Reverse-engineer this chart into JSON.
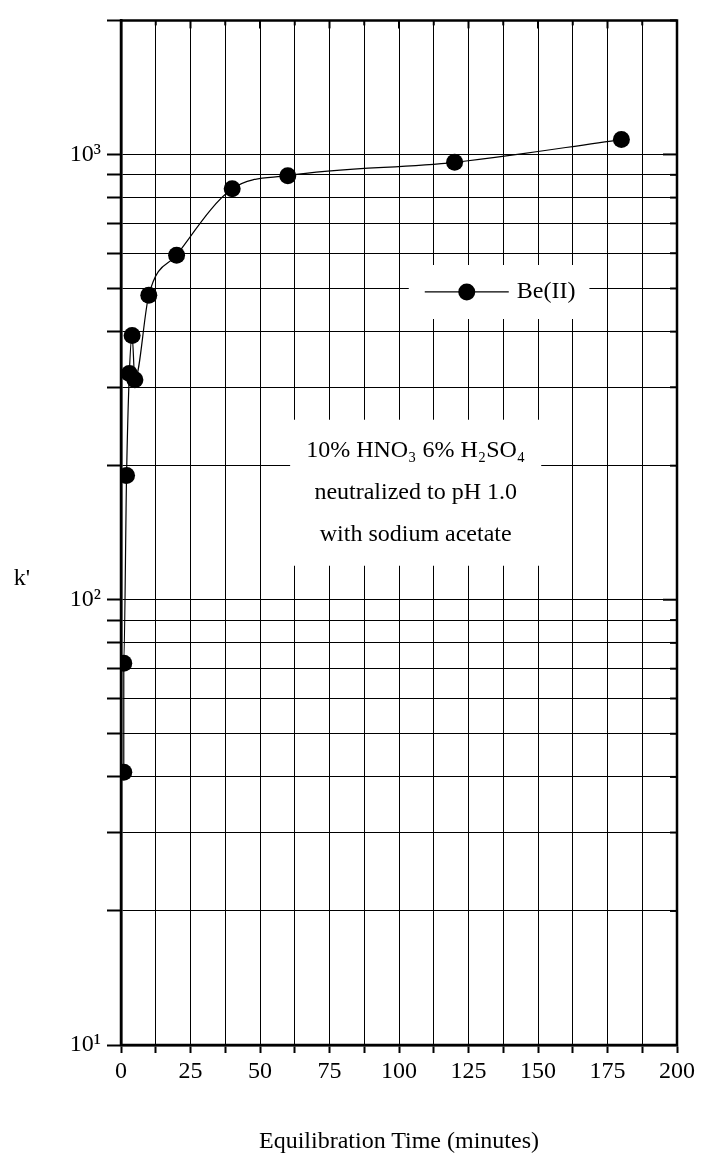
{
  "chart_data": {
    "type": "line",
    "xlabel": "Equilibration Time (minutes)",
    "ylabel": "k'",
    "x": [
      1,
      1,
      2,
      3,
      4,
      5,
      10,
      20,
      40,
      60,
      120,
      180
    ],
    "series": [
      {
        "name": "Be(II)",
        "color": "#000000",
        "values": [
          41,
          72,
          190,
          322,
          392,
          312,
          483,
          594,
          837,
          896,
          960,
          1080
        ]
      }
    ],
    "xlim": [
      0,
      200
    ],
    "xticks": [
      0,
      {
        "value": 12.5,
        "label": null
      },
      25,
      {
        "value": 37.5,
        "label": null
      },
      50,
      {
        "value": 62.5,
        "label": null
      },
      75,
      {
        "value": 87.5,
        "label": null
      },
      100,
      {
        "value": 112.5,
        "label": null
      },
      125,
      {
        "value": 137.5,
        "label": null
      },
      150,
      {
        "value": 162.5,
        "label": null
      },
      175,
      {
        "value": 187.5,
        "label": null
      },
      200
    ],
    "ylim": [
      10,
      2000
    ],
    "log": "y",
    "yticks": [
      {
        "value": 10,
        "label": "10¹"
      },
      {
        "value": 20,
        "label": null
      },
      {
        "value": 30,
        "label": null
      },
      {
        "value": 40,
        "label": null
      },
      {
        "value": 50,
        "label": null
      },
      {
        "value": 60,
        "label": null
      },
      {
        "value": 70,
        "label": null
      },
      {
        "value": 80,
        "label": null
      },
      {
        "value": 90,
        "label": null
      },
      {
        "value": 100,
        "label": "10²"
      },
      {
        "value": 200,
        "label": null
      },
      {
        "value": 300,
        "label": null
      },
      {
        "value": 400,
        "label": null
      },
      {
        "value": 500,
        "label": null
      },
      {
        "value": 600,
        "label": null
      },
      {
        "value": 700,
        "label": null
      },
      {
        "value": 800,
        "label": null
      },
      {
        "value": 900,
        "label": null
      },
      {
        "value": 1000,
        "label": "10³"
      },
      {
        "value": 2000,
        "label": null
      }
    ],
    "annotations": [
      "10% HNO₃ 6% H₂SO₄",
      "neutralized to pH 1.0",
      "with sodium acetate"
    ],
    "grid": true,
    "legend": "top right",
    "marker": "circle",
    "line_style": "solid"
  }
}
